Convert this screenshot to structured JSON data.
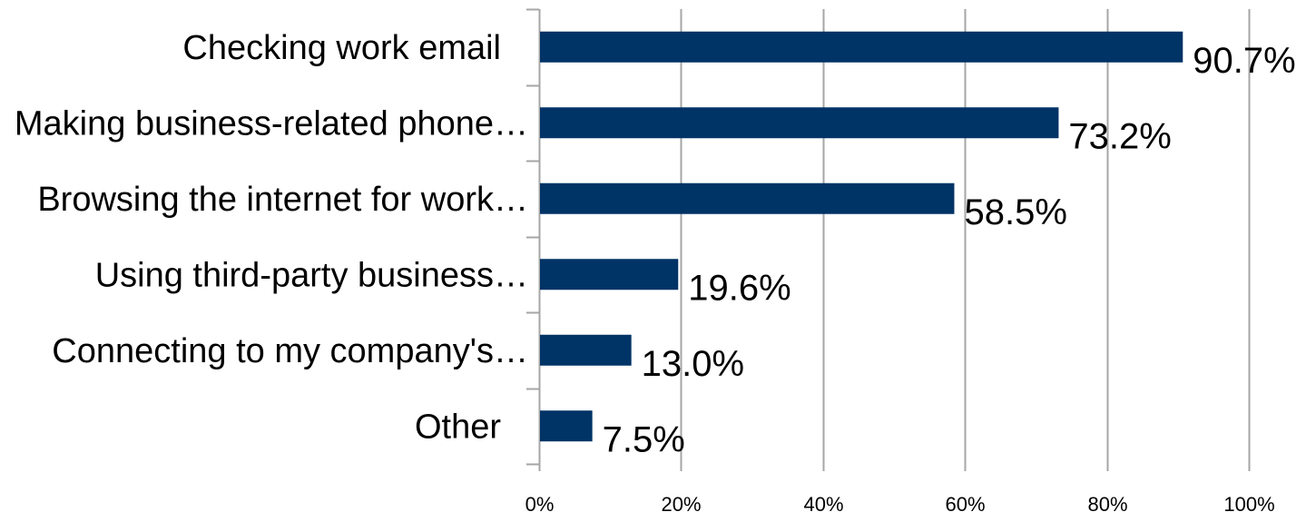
{
  "chart_data": {
    "type": "bar",
    "orientation": "horizontal",
    "categories": [
      "Checking work email",
      "Making business-related phone…",
      "Browsing the internet for work…",
      "Using third-party business…",
      "Connecting to my company's…",
      "Other"
    ],
    "values": [
      90.7,
      73.2,
      58.5,
      19.6,
      13.0,
      7.5
    ],
    "data_labels": [
      "90.7%",
      "73.2%",
      "58.5%",
      "19.6%",
      "13.0%",
      "7.5%"
    ],
    "x_ticks": [
      "0%",
      "20%",
      "40%",
      "60%",
      "80%",
      "100%"
    ],
    "xlim": [
      0,
      100
    ],
    "title": "",
    "xlabel": "",
    "ylabel": "",
    "grid": true,
    "legend": "none",
    "bar_color": "#003366",
    "grid_color": "#a6a6a6",
    "axis_color": "#a6a6a6"
  }
}
